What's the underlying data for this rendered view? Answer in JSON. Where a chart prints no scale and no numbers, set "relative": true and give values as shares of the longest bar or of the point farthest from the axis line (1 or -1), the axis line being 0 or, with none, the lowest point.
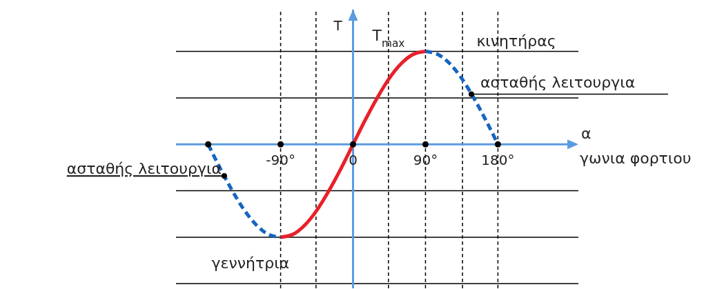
{
  "chart_data": {
    "type": "line",
    "relative": true,
    "xlabel": "α",
    "ylabel": "T",
    "xlim": [
      -220,
      280
    ],
    "xticks": [
      {
        "value": -90,
        "label": "-90°"
      },
      0,
      {
        "value": 90,
        "label": "90°"
      },
      {
        "value": 180,
        "label": "180°"
      }
    ],
    "series": [
      {
        "color": "#e8202a",
        "line_style": "solid",
        "marker": "none",
        "x": [
          -90,
          -75,
          -60,
          -45,
          -30,
          -15,
          0,
          15,
          30,
          45,
          60,
          75,
          90
        ],
        "values": [
          -1,
          -0.97,
          -0.87,
          -0.71,
          -0.5,
          -0.26,
          0,
          0.26,
          0.5,
          0.71,
          0.87,
          0.97,
          1
        ]
      },
      {
        "color": "#1565c0",
        "line_style": "dashed",
        "marker": "none",
        "x": [
          90,
          105,
          120,
          135,
          150,
          165,
          180
        ],
        "values": [
          1,
          0.97,
          0.87,
          0.71,
          0.5,
          0.26,
          0
        ]
      },
      {
        "color": "#1565c0",
        "line_style": "dashed",
        "marker": "none",
        "x": [
          -180,
          -165,
          -150,
          -135,
          -120,
          -105,
          -90
        ],
        "values": [
          0,
          -0.26,
          -0.5,
          -0.71,
          -0.87,
          -0.97,
          -1
        ]
      },
      {
        "type": "scatter",
        "color": "#000000",
        "marker": "circle",
        "x": [
          -180,
          -90,
          0,
          90,
          180
        ],
        "values": [
          0,
          0,
          0,
          0,
          0
        ]
      }
    ],
    "ref_lines": [
      {
        "axis": "y",
        "value": 1,
        "color": "#000000",
        "line_style": "solid"
      },
      {
        "axis": "y",
        "value": 0.5,
        "color": "#000000",
        "line_style": "solid"
      },
      {
        "axis": "y",
        "value": -0.5,
        "color": "#000000",
        "line_style": "solid"
      },
      {
        "axis": "y",
        "value": -1,
        "color": "#000000",
        "line_style": "solid"
      },
      {
        "axis": "y",
        "value": -1.5,
        "color": "#000000",
        "line_style": "solid"
      },
      {
        "axis": "x",
        "value": 0,
        "color": "#5b9be0",
        "line_style": "solid"
      },
      {
        "axis": "x",
        "value": -90,
        "color": "#000000",
        "line_style": "dashed"
      },
      {
        "axis": "x",
        "value": -46,
        "color": "#000000",
        "line_style": "dashed"
      },
      {
        "axis": "x",
        "value": 44,
        "color": "#000000",
        "line_style": "dashed"
      },
      {
        "axis": "x",
        "value": 90,
        "color": "#000000",
        "line_style": "dashed"
      },
      {
        "axis": "x",
        "value": 136,
        "color": "#000000",
        "line_style": "dashed"
      },
      {
        "axis": "x",
        "value": 180,
        "color": "#000000",
        "line_style": "dashed"
      }
    ],
    "annotations": [
      {
        "text": "T$_{max}$",
        "x": 90,
        "y": 1
      },
      {
        "text": "κινητήρας",
        "x": 150,
        "y": 1
      },
      {
        "text": "ασταθής λειτουργια",
        "x": 147,
        "y": 0.54
      },
      {
        "text": "ασταθής λειτουργια",
        "x": -160,
        "y": -0.34
      },
      {
        "text": "γεννήτρια",
        "x": -90,
        "y": -1
      },
      "γωνια φορτιου"
    ]
  }
}
